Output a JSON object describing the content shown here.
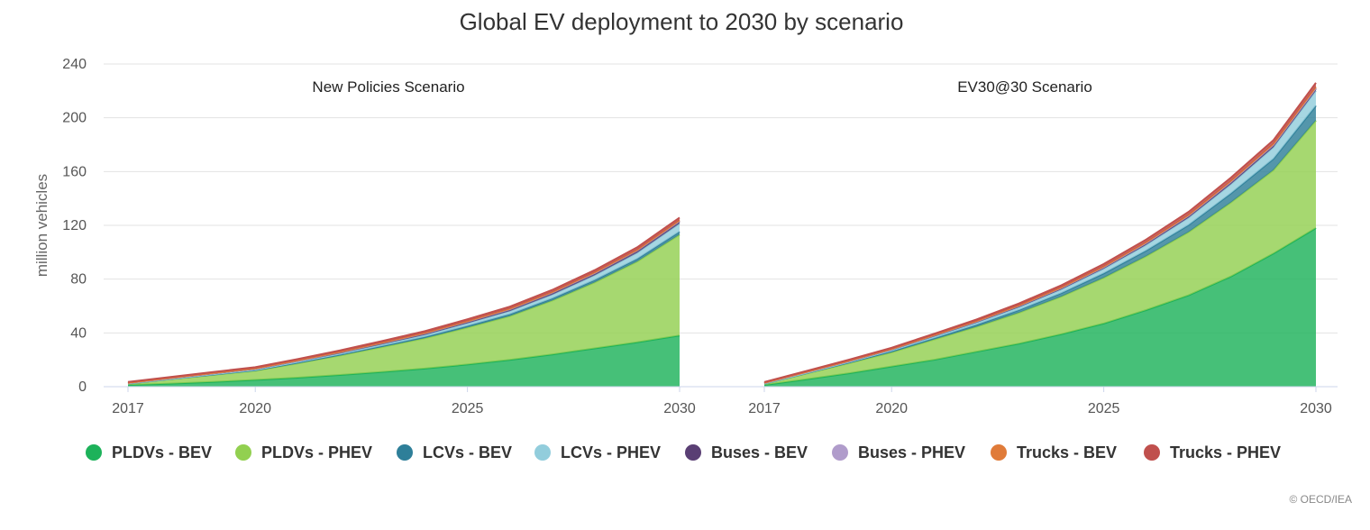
{
  "chart_data": {
    "type": "area",
    "title": "Global EV deployment to 2030 by scenario",
    "ylabel": "million vehicles",
    "ylim": [
      0,
      240
    ],
    "yticks": [
      0,
      40,
      80,
      120,
      160,
      200,
      240
    ],
    "xticks": [
      "2017",
      "2020",
      "2025",
      "2030"
    ],
    "grid": true,
    "legend_position": "bottom",
    "stacked": true,
    "credit": "© OECD/IEA",
    "series_meta": [
      {
        "name": "PLDVs - BEV",
        "color": "#1db25a"
      },
      {
        "name": "PLDVs - PHEV",
        "color": "#92d050"
      },
      {
        "name": "LCVs - BEV",
        "color": "#2e7f99"
      },
      {
        "name": "LCVs - PHEV",
        "color": "#92cddc"
      },
      {
        "name": "Buses - BEV",
        "color": "#5a3f74"
      },
      {
        "name": "Buses - PHEV",
        "color": "#b09ccb"
      },
      {
        "name": "Trucks - BEV",
        "color": "#e07b39"
      },
      {
        "name": "Trucks - PHEV",
        "color": "#c0504d"
      }
    ],
    "panels": [
      {
        "title": "New Policies Scenario",
        "x": [
          2017,
          2018,
          2019,
          2020,
          2021,
          2022,
          2023,
          2024,
          2025,
          2026,
          2027,
          2028,
          2029,
          2030
        ],
        "series": [
          {
            "name": "PLDVs - BEV",
            "values": [
              1.3,
              2.3,
              3.5,
              5,
              6.7,
              8.7,
              11,
              13.5,
              16.5,
              20,
              24,
              28.5,
              33,
              38
            ]
          },
          {
            "name": "PLDVs - PHEV",
            "values": [
              0.9,
              3.2,
              5.2,
              6.8,
              10.6,
              14.5,
              18.5,
              22.5,
              27.5,
              32.5,
              40,
              49,
              60,
              75
            ]
          },
          {
            "name": "LCVs - BEV",
            "values": [
              0.1,
              0.2,
              0.3,
              0.4,
              0.5,
              0.6,
              0.8,
              1,
              1.2,
              1.4,
              1.6,
              1.8,
              2,
              2.3
            ]
          },
          {
            "name": "LCVs - PHEV",
            "values": [
              0.1,
              0.2,
              0.3,
              0.5,
              0.7,
              0.9,
              1.2,
              1.5,
              1.9,
              2.3,
              2.8,
              3.5,
              4.5,
              6
            ]
          },
          {
            "name": "Buses - BEV",
            "values": [
              0.4,
              0.5,
              0.6,
              0.7,
              0.8,
              0.9,
              1,
              1.1,
              1.2,
              1.3,
              1.4,
              1.5,
              1.6,
              1.7
            ]
          },
          {
            "name": "Buses - PHEV",
            "values": [
              0.05,
              0.05,
              0.1,
              0.1,
              0.1,
              0.15,
              0.15,
              0.2,
              0.2,
              0.25,
              0.25,
              0.3,
              0.3,
              0.35
            ]
          },
          {
            "name": "Trucks - BEV",
            "values": [
              0.05,
              0.05,
              0.1,
              0.1,
              0.15,
              0.15,
              0.2,
              0.2,
              0.25,
              0.3,
              0.35,
              0.4,
              0.45,
              0.5
            ]
          },
          {
            "name": "Trucks - PHEV",
            "values": [
              0.6,
              0.7,
              0.8,
              0.9,
              1,
              1.1,
              1.2,
              1.3,
              1.4,
              1.5,
              1.6,
              1.7,
              1.8,
              1.9
            ]
          }
        ]
      },
      {
        "title": "EV30@30 Scenario",
        "x": [
          2017,
          2018,
          2019,
          2020,
          2021,
          2022,
          2023,
          2024,
          2025,
          2026,
          2027,
          2028,
          2029,
          2030
        ],
        "series": [
          {
            "name": "PLDVs - BEV",
            "values": [
              1.3,
              5.5,
              10,
              15,
              20,
              26,
              32,
              39,
              47,
              57,
              68,
              82,
              99,
              118
            ]
          },
          {
            "name": "PLDVs - PHEV",
            "values": [
              0.9,
              4.3,
              7.5,
              10.5,
              15,
              18.5,
              23,
              28,
              34,
              40,
              47,
              55,
              62,
              80
            ]
          },
          {
            "name": "LCVs - BEV",
            "values": [
              0.1,
              0.3,
              0.5,
              0.8,
              1.1,
              1.5,
              2,
              2.6,
              3.3,
              4.2,
              5.3,
              6.8,
              8.5,
              11
            ]
          },
          {
            "name": "LCVs - PHEV",
            "values": [
              0.1,
              0.3,
              0.5,
              0.8,
              1.1,
              1.5,
              2,
              2.6,
              3.3,
              4.2,
              5.3,
              6.8,
              8.5,
              11
            ]
          },
          {
            "name": "Buses - BEV",
            "values": [
              0.4,
              0.5,
              0.6,
              0.7,
              0.8,
              0.9,
              1,
              1.1,
              1.2,
              1.3,
              1.4,
              1.5,
              1.6,
              1.7
            ]
          },
          {
            "name": "Buses - PHEV",
            "values": [
              0.05,
              0.05,
              0.1,
              0.1,
              0.15,
              0.15,
              0.2,
              0.2,
              0.25,
              0.3,
              0.35,
              0.4,
              0.45,
              0.5
            ]
          },
          {
            "name": "Trucks - BEV",
            "values": [
              0.05,
              0.1,
              0.1,
              0.15,
              0.2,
              0.25,
              0.3,
              0.35,
              0.4,
              0.45,
              0.5,
              0.6,
              0.7,
              0.8
            ]
          },
          {
            "name": "Trucks - PHEV",
            "values": [
              0.6,
              0.7,
              0.8,
              0.9,
              1,
              1.2,
              1.4,
              1.6,
              1.8,
              2,
              2.2,
              2.4,
              2.6,
              3
            ]
          }
        ]
      }
    ]
  }
}
